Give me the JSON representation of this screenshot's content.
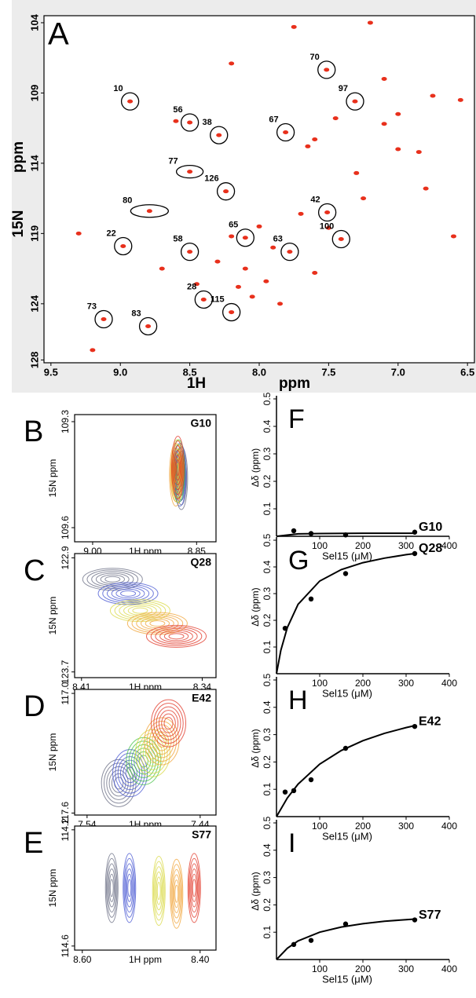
{
  "chart_data": [
    {
      "type": "scatter",
      "panel": "A",
      "x_label": "1H",
      "x_unit": "ppm",
      "y_label": "15N",
      "y_unit": "ppm",
      "xlim": [
        9.55,
        6.45
      ],
      "ylim": [
        103.5,
        128.2
      ],
      "y_inverted": true,
      "xticks": [
        9.5,
        {
          "value": 9,
          "label": "9.0"
        },
        8.5,
        {
          "value": 8,
          "label": "8.0"
        },
        7.5,
        {
          "value": 7,
          "label": "7.0"
        },
        6.5
      ],
      "yticks": [
        104,
        109,
        114,
        119,
        124,
        128
      ],
      "color": "#e8301c",
      "labels": [
        "70",
        "10",
        "97",
        "56",
        "38",
        "67",
        "77",
        "126",
        "80",
        "42",
        "22",
        "58",
        "65",
        "63",
        "100",
        "28",
        "115",
        "73",
        "83"
      ],
      "x": [
        7.515,
        8.93,
        7.31,
        8.5,
        8.29,
        7.81,
        8.5,
        8.24,
        8.79,
        7.51,
        8.98,
        8.5,
        8.1,
        7.78,
        7.41,
        8.4,
        8.2,
        9.12,
        8.8
      ],
      "y": [
        107.35,
        109.6,
        109.6,
        111.1,
        112.0,
        111.8,
        114.6,
        116.0,
        117.4,
        117.5,
        119.9,
        120.3,
        119.3,
        120.3,
        119.4,
        123.7,
        124.6,
        125.1,
        125.6
      ],
      "background": {
        "x": [
          7.2,
          7.75,
          8.2,
          7.1,
          6.55,
          6.75,
          7.0,
          7.1,
          7.45,
          7.65,
          7.6,
          8.6,
          7.0,
          6.85,
          7.3,
          6.8,
          7.25,
          7.7,
          8.0,
          8.2,
          7.9,
          8.3,
          8.1,
          7.95,
          8.15,
          8.05,
          9.3,
          9.2,
          8.7,
          8.45,
          7.6,
          7.85,
          7.5,
          6.6
        ],
        "y": [
          104.0,
          104.3,
          106.9,
          108.0,
          109.5,
          109.2,
          110.5,
          111.2,
          110.8,
          112.8,
          112.3,
          111.0,
          113.0,
          113.2,
          114.7,
          115.8,
          116.5,
          117.6,
          118.5,
          119.2,
          120.0,
          121.0,
          121.5,
          122.4,
          122.8,
          123.5,
          119.0,
          127.3,
          121.5,
          122.6,
          121.8,
          124.0,
          118.6,
          119.2
        ]
      }
    },
    {
      "type": "contour",
      "panel": "B",
      "title": "G10",
      "x_label": "1H ppm",
      "y_label": "15N ppm",
      "xlim": [
        9.026,
        8.822
      ],
      "ylim": [
        109.28,
        109.64
      ],
      "y_inverted": true,
      "xticks": [
        {
          "value": 9,
          "label": "9.00"
        },
        8.85
      ],
      "yticks": [
        109.3,
        109.6
      ],
      "peaks": {
        "x": [
          8.872,
          8.874,
          8.876,
          8.878,
          8.88,
          8.877
        ],
        "y": [
          109.46,
          109.45,
          109.44,
          109.44,
          109.45,
          109.43
        ],
        "colors": [
          "#666a80",
          "#4050d0",
          "#40c040",
          "#d8d840",
          "#f0a030",
          "#e03020"
        ]
      }
    },
    {
      "type": "contour",
      "panel": "C",
      "title": "Q28",
      "x_label": "1H ppm",
      "y_label": "15N ppm",
      "xlim": [
        8.414,
        8.332
      ],
      "ylim": [
        122.87,
        123.74
      ],
      "y_inverted": true,
      "xticks": [
        8.41,
        8.34
      ],
      "yticks": [
        122.9,
        123.7
      ],
      "peaks": {
        "x": [
          8.392,
          8.383,
          8.376,
          8.366,
          8.355
        ],
        "y": [
          123.05,
          123.15,
          123.27,
          123.36,
          123.45
        ],
        "colors": [
          "#666a80",
          "#4050d0",
          "#d8d840",
          "#f0a030",
          "#e03020"
        ]
      }
    },
    {
      "type": "contour",
      "panel": "D",
      "title": "E42",
      "x_label": "1H ppm",
      "y_label": "15N ppm",
      "xlim": [
        7.551,
        7.426
      ],
      "ylim": [
        116.98,
        117.61
      ],
      "y_inverted": true,
      "xticks": [
        7.54,
        7.44
      ],
      "yticks": [
        {
          "value": 117,
          "label": "117.0"
        },
        117.6
      ],
      "peaks": {
        "x": [
          7.512,
          7.502,
          7.49,
          7.482,
          7.474,
          7.468
        ],
        "y": [
          117.45,
          117.4,
          117.34,
          117.3,
          117.24,
          117.15
        ],
        "colors": [
          "#666a80",
          "#4050d0",
          "#40c040",
          "#d8d840",
          "#f0a030",
          "#e03020"
        ]
      }
    },
    {
      "type": "contour",
      "panel": "E",
      "title": "S77",
      "x_label": "1H ppm",
      "y_label": "15N ppm",
      "xlim": [
        8.613,
        8.373
      ],
      "ylim": [
        114.187,
        114.614
      ],
      "y_inverted": true,
      "xticks": [
        {
          "value": 8.6,
          "label": "8.60"
        },
        {
          "value": 8.4,
          "label": "8.40"
        }
      ],
      "yticks": [
        114.2,
        114.6
      ],
      "peaks": {
        "x": [
          8.55,
          8.52,
          8.47,
          8.44,
          8.41
        ],
        "y": [
          114.4,
          114.4,
          114.41,
          114.42,
          114.4
        ],
        "colors": [
          "#666a80",
          "#4050d0",
          "#d8d840",
          "#f0a030",
          "#e03020"
        ]
      }
    },
    {
      "type": "scatter",
      "panel": "F",
      "annotation": "G10",
      "x_label": "Sel15 (μM)",
      "y_label": "Δδ (ppm)",
      "xlim": [
        0,
        400
      ],
      "ylim": [
        0,
        0.5
      ],
      "xticks": [
        100,
        200,
        300,
        400
      ],
      "yticks": [
        0.1,
        0.2,
        0.3,
        0.4,
        0.5
      ],
      "color": "#000000",
      "x": [
        40,
        80,
        160,
        320
      ],
      "y": [
        0.02,
        0.01,
        0.005,
        0.015
      ],
      "fit": {
        "x": [
          0,
          50,
          100,
          200,
          320
        ],
        "y": [
          0.0,
          0.009,
          0.01,
          0.011,
          0.011
        ]
      }
    },
    {
      "type": "scatter",
      "panel": "G",
      "annotation": "Q28",
      "x_label": "Sel15 (μM)",
      "y_label": "Δδ (ppm)",
      "xlim": [
        0,
        400
      ],
      "ylim": [
        0,
        0.5
      ],
      "xticks": [
        100,
        200,
        300,
        400
      ],
      "yticks": [
        0.1,
        0.2,
        0.3,
        0.4,
        0.5
      ],
      "color": "#000000",
      "x": [
        20,
        80,
        160,
        320
      ],
      "y": [
        0.17,
        0.28,
        0.375,
        0.45
      ],
      "fit": {
        "x": [
          0,
          10,
          25,
          50,
          100,
          150,
          200,
          250,
          300,
          320
        ],
        "y": [
          0,
          0.087,
          0.173,
          0.26,
          0.347,
          0.39,
          0.416,
          0.433,
          0.446,
          0.45
        ]
      }
    },
    {
      "type": "scatter",
      "panel": "H",
      "annotation": "E42",
      "x_label": "Sel15 (μM)",
      "y_label": "Δδ (ppm)",
      "xlim": [
        0,
        400
      ],
      "ylim": [
        0,
        0.5
      ],
      "xticks": [
        100,
        200,
        300,
        400
      ],
      "yticks": [
        0.1,
        0.2,
        0.3,
        0.4,
        0.5
      ],
      "color": "#000000",
      "x": [
        20,
        40,
        80,
        160,
        320
      ],
      "y": [
        0.09,
        0.095,
        0.135,
        0.25,
        0.33
      ],
      "fit": {
        "x": [
          0,
          25,
          50,
          100,
          150,
          200,
          250,
          300,
          320
        ],
        "y": [
          0,
          0.068,
          0.119,
          0.192,
          0.242,
          0.278,
          0.305,
          0.326,
          0.333
        ]
      }
    },
    {
      "type": "scatter",
      "panel": "I",
      "annotation": "S77",
      "x_label": "Sel15 (μM)",
      "y_label": "Δδ (ppm)",
      "xlim": [
        0,
        400
      ],
      "ylim": [
        0,
        0.5
      ],
      "xticks": [
        100,
        200,
        300,
        400
      ],
      "yticks": [
        0.1,
        0.2,
        0.3,
        0.4,
        0.5
      ],
      "color": "#000000",
      "x": [
        40,
        80,
        160,
        320
      ],
      "y": [
        0.055,
        0.07,
        0.13,
        0.145
      ],
      "fit": {
        "x": [
          0,
          25,
          50,
          100,
          150,
          200,
          250,
          300,
          320
        ],
        "y": [
          0,
          0.041,
          0.068,
          0.1,
          0.119,
          0.131,
          0.14,
          0.146,
          0.148
        ]
      }
    }
  ]
}
